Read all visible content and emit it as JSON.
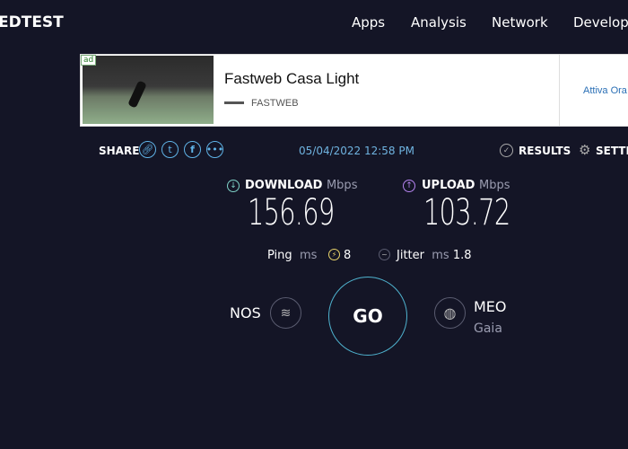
{
  "header": {
    "logo": "EDTEST",
    "nav": [
      "Apps",
      "Analysis",
      "Network",
      "Develop"
    ]
  },
  "ad": {
    "tag": "ad",
    "title": "Fastweb Casa Light",
    "brand": "FASTWEB",
    "cta": "Attiva Ora"
  },
  "share": {
    "label": "SHARE",
    "date": "05/04/2022 12:58 PM",
    "results": "RESULTS",
    "settings": "SETTINGS"
  },
  "download": {
    "label": "DOWNLOAD",
    "unit": "Mbps",
    "value": "156.69",
    "color": "#7fd3c8"
  },
  "upload": {
    "label": "UPLOAD",
    "unit": "Mbps",
    "value": "103.72",
    "color": "#b584f0"
  },
  "ping": {
    "label": "Ping",
    "unit": "ms",
    "value": "8"
  },
  "jitter": {
    "label": "Jitter",
    "unit": "ms",
    "value": "1.8"
  },
  "isp": {
    "name": "NOS"
  },
  "server": {
    "name": "MEO",
    "location": "Gaia"
  },
  "go": "GO"
}
